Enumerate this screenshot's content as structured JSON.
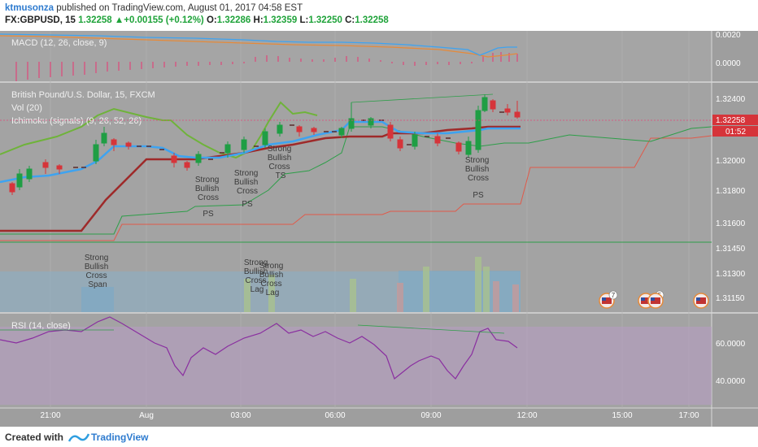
{
  "header": {
    "author": "ktmusonza",
    "published_text": "published on TradingView.com, August 01, 2017 04:58 EST",
    "symbol": "FX:GBPUSD, 15",
    "last": "1.32258",
    "arrow": "▲",
    "change": "+0.00155 (+0.12%)",
    "o_label": "O:",
    "o_value": "1.32286",
    "h_label": "H:",
    "h_value": "1.32359",
    "l_label": "L:",
    "l_value": "1.32250",
    "c_label": "C:",
    "c_value": "1.32258"
  },
  "macd": {
    "label": "MACD (12, 26, close, 9)",
    "ticks": [
      "0.0020",
      "0.0000"
    ]
  },
  "price": {
    "title": "British Pound/U.S. Dollar, 15, FXCM",
    "vol": "Vol (20)",
    "ichimoku": "Ichimoku (signals) (9, 26, 52, 26)",
    "ticks": [
      "1.32400",
      "1.32000",
      "1.31800",
      "1.31600",
      "1.31450",
      "1.31300",
      "1.31150"
    ],
    "last_price_tag": "1.32258",
    "countdown_tag": "01:52",
    "colors": {
      "tenkan": "#3ea3f0",
      "kijun": "#9e2a2a",
      "chikou": "#6fb33a",
      "span_a": "#2e9e49",
      "span_b": "#e05a4a",
      "bull": "#1f9e44",
      "bear": "#d6343a"
    },
    "signals": [
      {
        "text": "Strong\nBullish\nCross"
      },
      {
        "text": "PS"
      },
      {
        "text": "Strong\nBullish\nCross"
      },
      {
        "text": "PS"
      },
      {
        "text": "Strong\nBullish\nCross\nTS"
      },
      {
        "text": "Strong\nBullish\nCross"
      },
      {
        "text": "PS"
      },
      {
        "text": "Strong\nBullish\nCross\nSpan"
      },
      {
        "text": "Strong\nBullish\nCross\nLag"
      },
      {
        "text": "Strong\nBullish\nCross\nLag"
      }
    ],
    "event_badges": [
      "7",
      "5"
    ]
  },
  "rsi": {
    "label": "RSI (14, close)",
    "ticks": [
      "60.0000",
      "40.0000"
    ]
  },
  "time_axis": {
    "labels": [
      "21:00",
      "Aug",
      "03:00",
      "06:00",
      "09:00",
      "12:00",
      "15:00",
      "17:00"
    ]
  },
  "footer": {
    "created_with": "Created with",
    "brand": "TradingView"
  }
}
